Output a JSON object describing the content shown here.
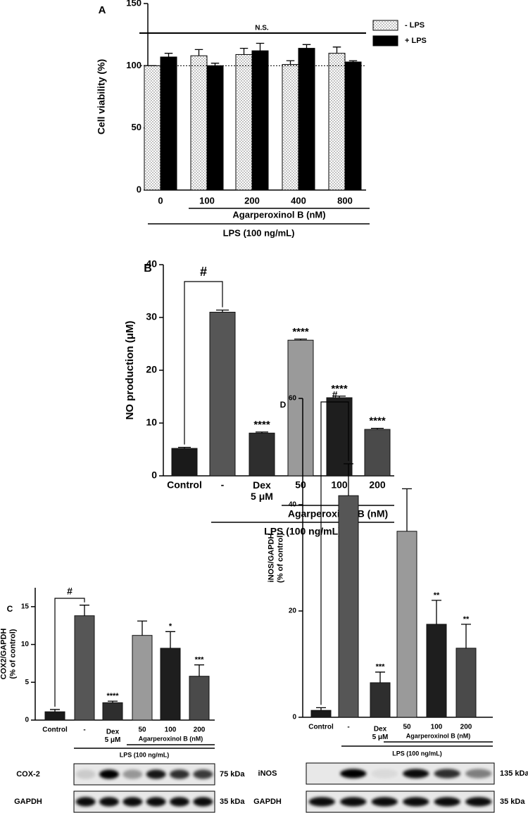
{
  "chart_data": [
    {
      "type": "bar",
      "panel": "A",
      "y_label": "Cell viability (%)",
      "categories": [
        "0",
        "100",
        "200",
        "400",
        "800"
      ],
      "series": [
        {
          "name": "- LPS",
          "color": "#ffffff",
          "hatch": "dots",
          "values": [
            100,
            108,
            109,
            101,
            110
          ],
          "errors": [
            0,
            5,
            5,
            3,
            5
          ]
        },
        {
          "name": "+ LPS",
          "color": "#000000",
          "values": [
            107,
            100,
            112,
            114,
            103
          ],
          "errors": [
            3,
            2,
            6,
            3,
            1
          ]
        }
      ],
      "ylim": [
        0,
        150
      ],
      "yticks": [
        0,
        50,
        100,
        150
      ],
      "reference_line": 100,
      "annotation": "N.S.",
      "group_labels": [
        "Agarperoxinol B (nM)",
        "LPS (100 ng/mL)"
      ]
    },
    {
      "type": "bar",
      "panel": "B",
      "y_label": "NO production (μM)",
      "categories": [
        "Control",
        "-",
        "Dex\n5 μM",
        "50",
        "100",
        "200"
      ],
      "values": [
        5.2,
        31,
        8.1,
        25.7,
        14.8,
        8.8
      ],
      "errors": [
        0.2,
        0.4,
        0.2,
        0.2,
        0.3,
        0.2
      ],
      "colors": [
        "#1a1a1a",
        "#565656",
        "#2e2e2e",
        "#9a9a9a",
        "#1e1e1e",
        "#4a4a4a"
      ],
      "significance": [
        null,
        null,
        "****",
        "****",
        "****",
        "****"
      ],
      "comparison_label": "#",
      "ylim": [
        0,
        40
      ],
      "yticks": [
        0,
        10,
        20,
        30,
        40
      ],
      "group_labels": [
        "Agarperoxinol B (nM)",
        "LPS (100 ng/mL)"
      ]
    },
    {
      "type": "bar",
      "panel": "C",
      "y_label": "COX2/GAPDH\n(% of control)",
      "categories": [
        "Control",
        "-",
        "Dex\n5 μM",
        "50",
        "100",
        "200"
      ],
      "values": [
        1.1,
        13.8,
        2.3,
        11.2,
        9.5,
        5.8
      ],
      "errors": [
        0.3,
        1.4,
        0.2,
        1.9,
        2.2,
        1.5
      ],
      "colors": [
        "#1a1a1a",
        "#565656",
        "#2e2e2e",
        "#9a9a9a",
        "#1e1e1e",
        "#4a4a4a"
      ],
      "significance": [
        null,
        null,
        "****",
        null,
        "*",
        "***"
      ],
      "comparison_label": "#",
      "ylim": [
        0,
        17.5
      ],
      "yticks": [
        0,
        5,
        10,
        15
      ],
      "group_labels": [
        "Agarperoxinol B (nM)",
        "LPS (100 ng/mL)"
      ],
      "blots": [
        {
          "protein": "COX-2",
          "size": "75 kDa"
        },
        {
          "protein": "GAPDH",
          "size": "35 kDa"
        }
      ]
    },
    {
      "type": "bar",
      "panel": "D",
      "y_label": "iNOS/GAPDH\n(% of control)",
      "categories": [
        "Control",
        "-",
        "Dex\n5 μM",
        "50",
        "100",
        "200"
      ],
      "values": [
        1.3,
        41.7,
        6.5,
        35,
        17.5,
        13
      ],
      "errors": [
        0.5,
        6,
        2,
        8,
        4.5,
        4.5
      ],
      "colors": [
        "#1a1a1a",
        "#565656",
        "#2e2e2e",
        "#9a9a9a",
        "#1e1e1e",
        "#4a4a4a"
      ],
      "significance": [
        null,
        null,
        "***",
        null,
        "**",
        "**"
      ],
      "comparison_label": "#",
      "ylim": [
        0,
        60
      ],
      "yticks": [
        0,
        20,
        40,
        60
      ],
      "group_labels": [
        "Agarperoxinol B (nM)",
        "LPS (100 ng/mL)"
      ],
      "blots": [
        {
          "protein": "iNOS",
          "size": "135 kDa"
        },
        {
          "protein": "GAPDH",
          "size": "35 kDa"
        }
      ]
    }
  ]
}
